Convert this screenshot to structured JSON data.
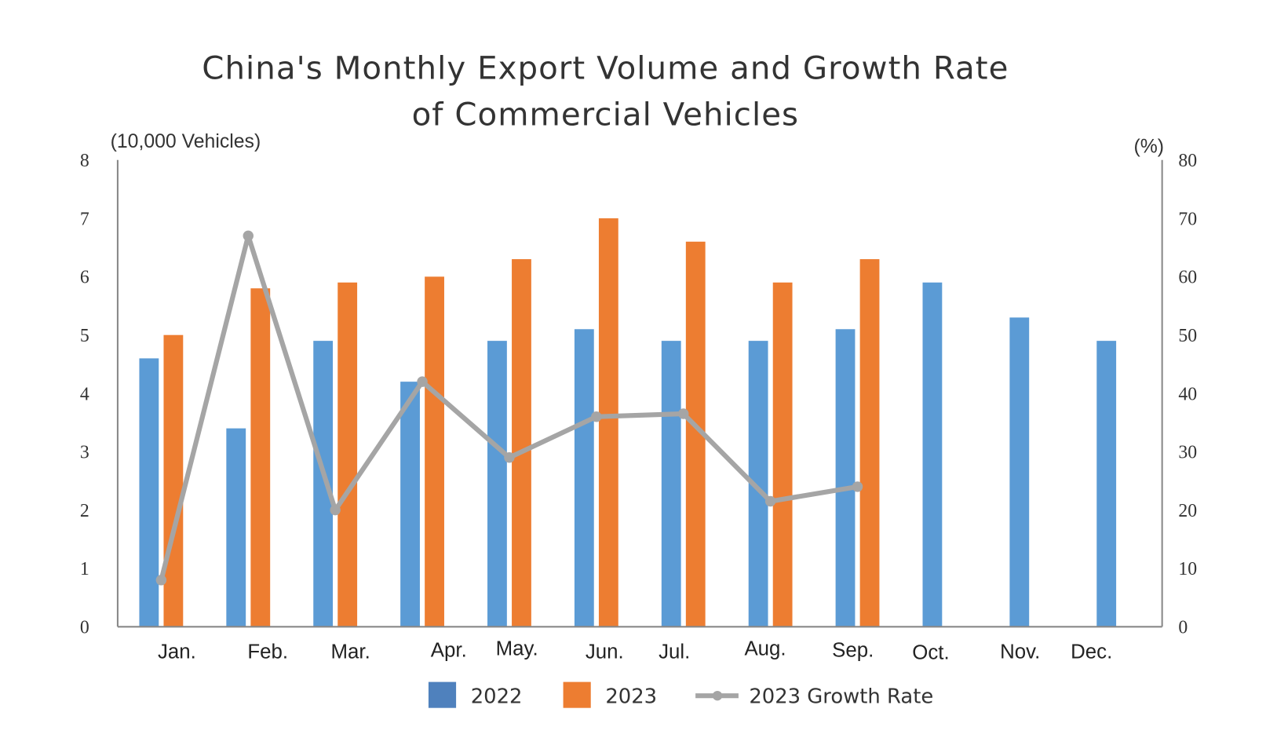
{
  "chart_data": {
    "type": "bar+line",
    "title": [
      "China's Monthly Export Volume and Growth Rate",
      "of Commercial Vehicles"
    ],
    "ylabel_left": "(10,000 Vehicles)",
    "ylabel_right": "(%)",
    "ylim_left": [
      0,
      8
    ],
    "ylim_right": [
      0,
      80
    ],
    "yticks_left": [
      "0",
      "1",
      "2",
      "3",
      "4",
      "5",
      "6",
      "7",
      "8"
    ],
    "yticks_right": [
      "0",
      "10",
      "20",
      "30",
      "40",
      "50",
      "60",
      "70",
      "80"
    ],
    "categories": [
      "Jan.",
      "Feb.",
      "Mar.",
      "Apr.",
      "May.",
      "Jun.",
      "Jul.",
      "Aug.",
      "Sep.",
      "Oct.",
      "Nov.",
      "Dec."
    ],
    "grid": false,
    "legend_placement": "bottom",
    "series": [
      {
        "name": "2022",
        "type": "bar",
        "axis": "left",
        "color": "#5b9bd5",
        "legend_color": "#4f81bd",
        "values": [
          4.6,
          3.4,
          4.9,
          4.2,
          4.9,
          5.1,
          4.9,
          4.9,
          5.1,
          5.9,
          5.3,
          4.9
        ]
      },
      {
        "name": "2023",
        "type": "bar",
        "axis": "left",
        "color": "#ed7d31",
        "values": [
          5.0,
          5.8,
          5.9,
          6.0,
          6.3,
          7.0,
          6.6,
          5.9,
          6.3,
          null,
          null,
          null
        ]
      },
      {
        "name": "2023 Growth Rate",
        "type": "line",
        "axis": "right",
        "color": "#a5a5a5",
        "values": [
          8,
          67,
          20,
          42,
          29,
          36,
          36.5,
          21.5,
          24,
          null,
          null,
          null
        ]
      }
    ]
  }
}
